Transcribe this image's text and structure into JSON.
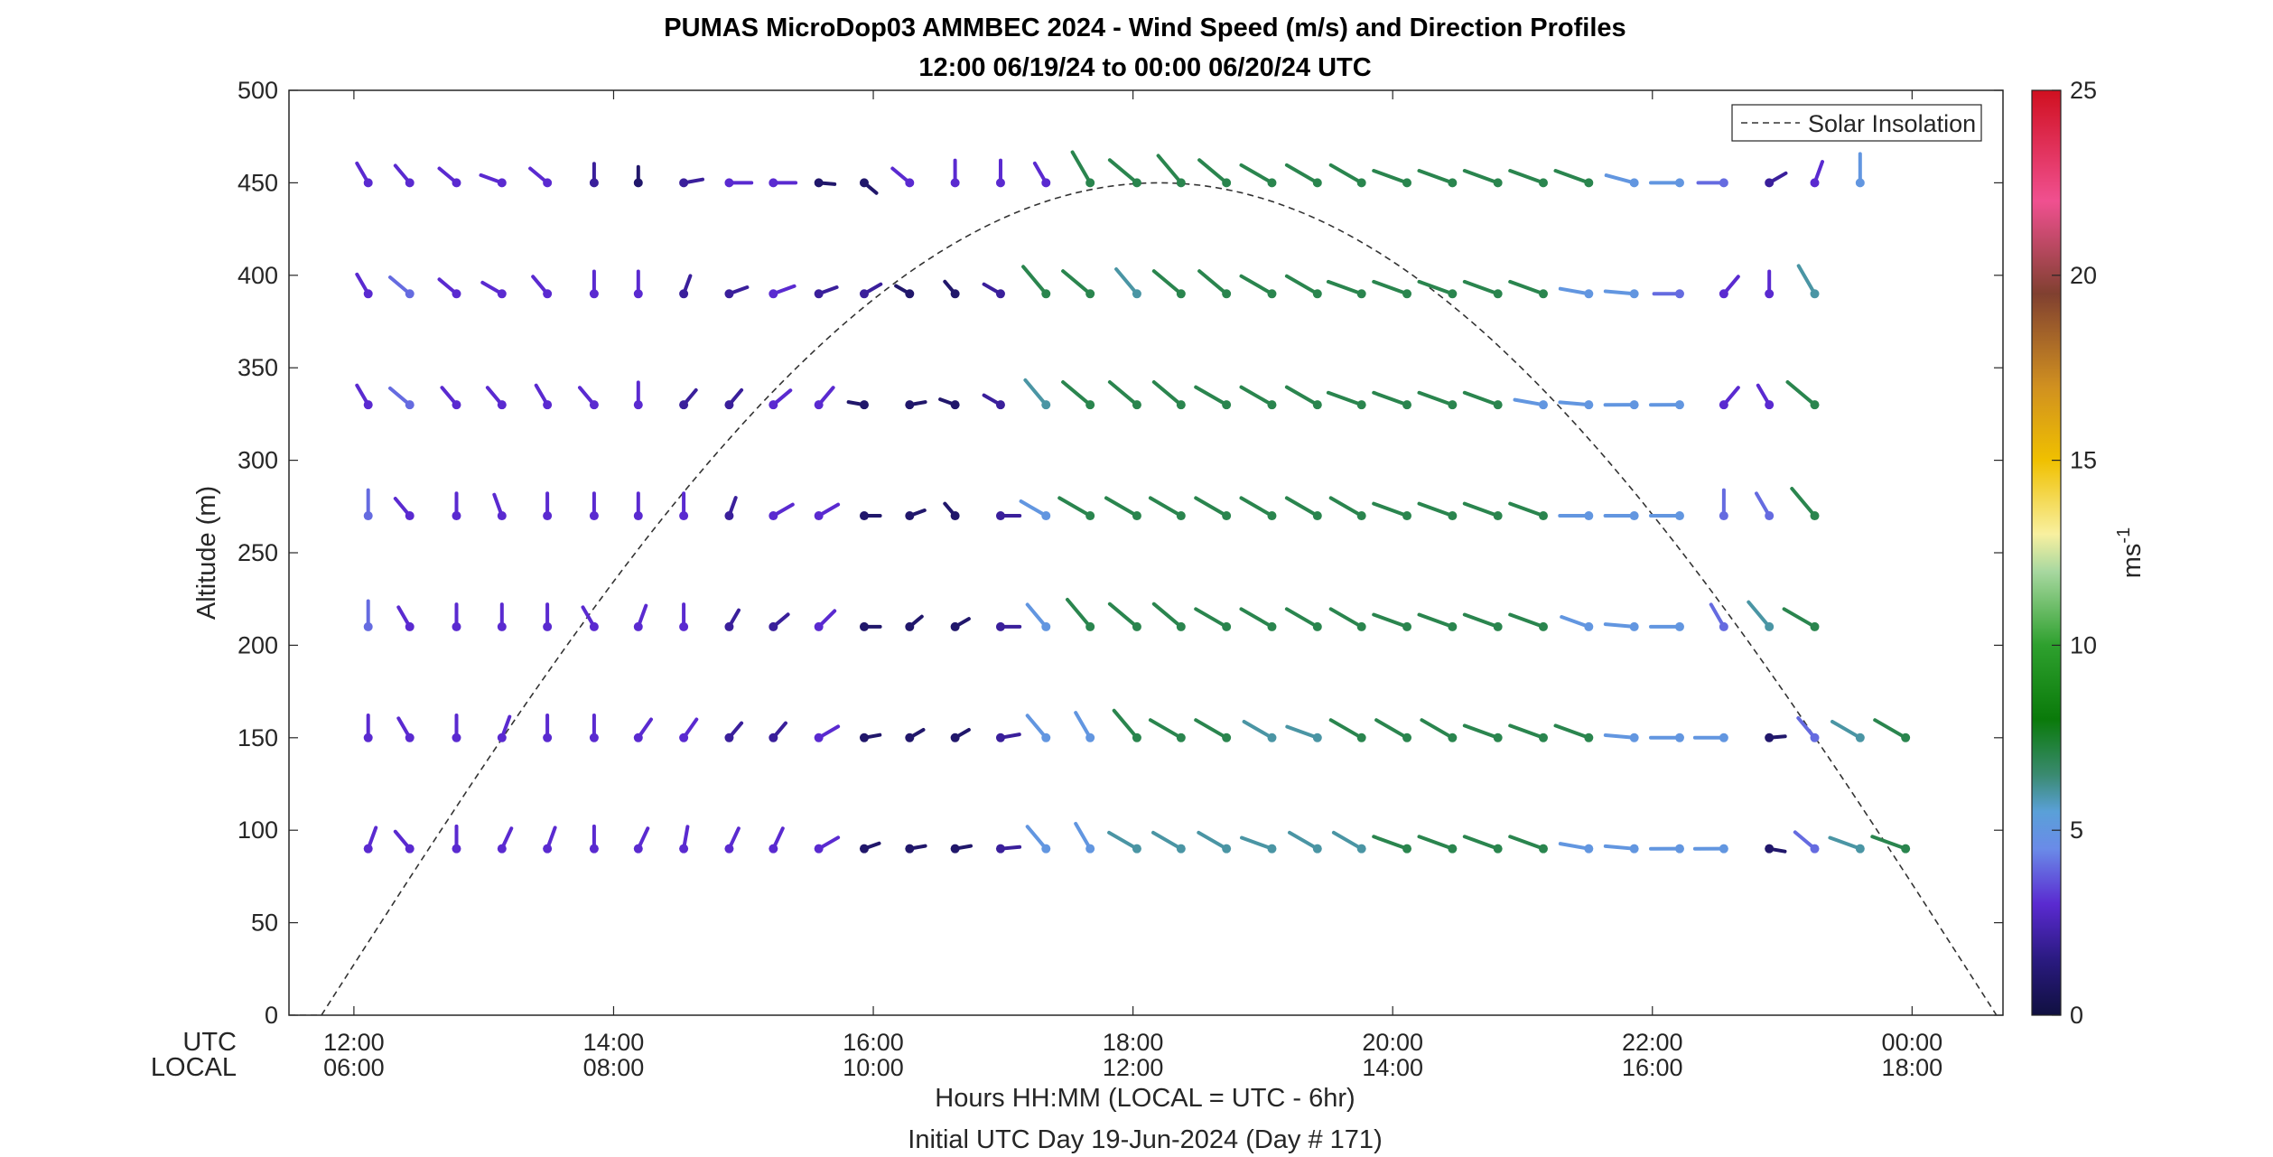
{
  "chart_data": {
    "type": "wind-barb-profile",
    "title": "PUMAS MicroDop03 AMMBEC 2024 - Wind Speed (m/s) and Direction Profiles",
    "subtitle": "12:00 06/19/24 to 00:00 06/20/24  UTC",
    "ylabel": "Altitude (m)",
    "xlabel": "Hours HH:MM  (LOCAL = UTC - 6hr)",
    "footer": "Initial UTC Day 19-Jun-2024 (Day # 171)",
    "row_labels": [
      "UTC",
      "LOCAL"
    ],
    "xlim": [
      11.5,
      24.7
    ],
    "ylim": [
      0,
      500
    ],
    "y_ticks": [
      0,
      50,
      100,
      150,
      200,
      250,
      300,
      350,
      400,
      450,
      500
    ],
    "x_ticks": [
      {
        "x": 12,
        "utc": "12:00",
        "local": "06:00"
      },
      {
        "x": 14,
        "utc": "14:00",
        "local": "08:00"
      },
      {
        "x": 16,
        "utc": "16:00",
        "local": "10:00"
      },
      {
        "x": 18,
        "utc": "18:00",
        "local": "12:00"
      },
      {
        "x": 20,
        "utc": "20:00",
        "local": "14:00"
      },
      {
        "x": 22,
        "utc": "22:00",
        "local": "16:00"
      },
      {
        "x": 24,
        "utc": "00:00",
        "local": "18:00"
      }
    ],
    "colorbar": {
      "label": "ms",
      "label_exponent": "-1",
      "range": [
        0,
        25
      ],
      "ticks": [
        0,
        5,
        10,
        15,
        20,
        25
      ],
      "stops": [
        {
          "v": 0,
          "c": "#101040"
        },
        {
          "v": 1.5,
          "c": "#2a1a80"
        },
        {
          "v": 3,
          "c": "#5a2ad0"
        },
        {
          "v": 4.5,
          "c": "#6a8be8"
        },
        {
          "v": 5.5,
          "c": "#5aa0d8"
        },
        {
          "v": 6.5,
          "c": "#3a8a70"
        },
        {
          "v": 8,
          "c": "#0a7a0a"
        },
        {
          "v": 10,
          "c": "#2ea02e"
        },
        {
          "v": 12,
          "c": "#a8d8a0"
        },
        {
          "v": 13,
          "c": "#f8f0a0"
        },
        {
          "v": 15,
          "c": "#f0c000"
        },
        {
          "v": 17,
          "c": "#d09020"
        },
        {
          "v": 19.5,
          "c": "#804030"
        },
        {
          "v": 22,
          "c": "#f05090"
        },
        {
          "v": 25,
          "c": "#d01020"
        }
      ]
    },
    "legend": {
      "label": "Solar Insolation",
      "location": "top-right"
    },
    "solar_insolation": {
      "rise_hour": 11.75,
      "set_hour": 24.65,
      "peak_altitude": 450
    },
    "altitudes": [
      90,
      150,
      210,
      270,
      330,
      390,
      450
    ],
    "times": [
      12.11,
      12.43,
      12.79,
      13.14,
      13.49,
      13.85,
      14.19,
      14.54,
      14.89,
      15.23,
      15.58,
      15.93,
      16.28,
      16.63,
      16.98,
      17.33,
      17.67,
      18.03,
      18.37,
      18.72,
      19.07,
      19.42,
      19.76,
      20.11,
      20.46,
      20.81,
      21.16,
      21.51,
      21.86,
      22.21,
      22.55,
      22.9,
      23.25,
      23.6,
      23.95,
      24.3
    ],
    "barb_note": "each barb: [speed m/s, direction degrees the line points from the dot]; null = no data",
    "barbs": {
      "90": [
        [
          3,
          20
        ],
        [
          3,
          320
        ],
        [
          3,
          0
        ],
        [
          3,
          25
        ],
        [
          3,
          20
        ],
        [
          3,
          0
        ],
        [
          3,
          25
        ],
        [
          3,
          10
        ],
        [
          3,
          25
        ],
        [
          3,
          25
        ],
        [
          3,
          60
        ],
        [
          1,
          70
        ],
        [
          1,
          80
        ],
        [
          1,
          80
        ],
        [
          2,
          85
        ],
        [
          5,
          320
        ],
        [
          5,
          330
        ],
        [
          6,
          300
        ],
        [
          6,
          300
        ],
        [
          6,
          300
        ],
        [
          6,
          290
        ],
        [
          6,
          300
        ],
        [
          6,
          300
        ],
        [
          7,
          290
        ],
        [
          7,
          290
        ],
        [
          7,
          290
        ],
        [
          7,
          290
        ],
        [
          5,
          280
        ],
        [
          5,
          275
        ],
        [
          5,
          270
        ],
        [
          5,
          270
        ],
        [
          1,
          100
        ],
        [
          4,
          310
        ],
        [
          6,
          290
        ],
        [
          7,
          290
        ],
        [
          null,
          null
        ]
      ],
      "150": [
        [
          3,
          0
        ],
        [
          3,
          330
        ],
        [
          3,
          0
        ],
        [
          3,
          20
        ],
        [
          3,
          0
        ],
        [
          3,
          0
        ],
        [
          3,
          35
        ],
        [
          3,
          35
        ],
        [
          2,
          40
        ],
        [
          2,
          40
        ],
        [
          3,
          60
        ],
        [
          1,
          80
        ],
        [
          1,
          60
        ],
        [
          1,
          60
        ],
        [
          2,
          80
        ],
        [
          5,
          320
        ],
        [
          5,
          330
        ],
        [
          7,
          320
        ],
        [
          7,
          300
        ],
        [
          7,
          300
        ],
        [
          6,
          300
        ],
        [
          6,
          290
        ],
        [
          7,
          300
        ],
        [
          7,
          300
        ],
        [
          7,
          300
        ],
        [
          7,
          290
        ],
        [
          7,
          290
        ],
        [
          7,
          290
        ],
        [
          5,
          275
        ],
        [
          5,
          270
        ],
        [
          5,
          270
        ],
        [
          1,
          85
        ],
        [
          4,
          320
        ],
        [
          6,
          300
        ],
        [
          7,
          300
        ],
        [
          null,
          null
        ]
      ],
      "210": [
        [
          4,
          0
        ],
        [
          3,
          330
        ],
        [
          3,
          0
        ],
        [
          3,
          0
        ],
        [
          3,
          0
        ],
        [
          3,
          330
        ],
        [
          3,
          20
        ],
        [
          3,
          0
        ],
        [
          2,
          30
        ],
        [
          2,
          50
        ],
        [
          3,
          45
        ],
        [
          1,
          90
        ],
        [
          1,
          50
        ],
        [
          1,
          60
        ],
        [
          2,
          90
        ],
        [
          5,
          320
        ],
        [
          7,
          320
        ],
        [
          7,
          310
        ],
        [
          7,
          310
        ],
        [
          7,
          300
        ],
        [
          7,
          300
        ],
        [
          7,
          300
        ],
        [
          7,
          300
        ],
        [
          7,
          290
        ],
        [
          7,
          290
        ],
        [
          7,
          290
        ],
        [
          7,
          290
        ],
        [
          5,
          290
        ],
        [
          5,
          275
        ],
        [
          5,
          270
        ],
        [
          4,
          330
        ],
        [
          6,
          320
        ],
        [
          7,
          300
        ],
        [
          null,
          null
        ],
        [
          null,
          null
        ],
        [
          null,
          null
        ]
      ],
      "270": [
        [
          4,
          0
        ],
        [
          3,
          320
        ],
        [
          3,
          0
        ],
        [
          3,
          340
        ],
        [
          3,
          0
        ],
        [
          3,
          0
        ],
        [
          3,
          0
        ],
        [
          3,
          0
        ],
        [
          2,
          20
        ],
        [
          3,
          60
        ],
        [
          3,
          60
        ],
        [
          1,
          90
        ],
        [
          1,
          70
        ],
        [
          1,
          320
        ],
        [
          2,
          90
        ],
        [
          5,
          300
        ],
        [
          7,
          300
        ],
        [
          7,
          300
        ],
        [
          7,
          300
        ],
        [
          7,
          300
        ],
        [
          7,
          300
        ],
        [
          7,
          300
        ],
        [
          7,
          300
        ],
        [
          7,
          290
        ],
        [
          7,
          290
        ],
        [
          7,
          290
        ],
        [
          7,
          290
        ],
        [
          5,
          270
        ],
        [
          5,
          270
        ],
        [
          5,
          270
        ],
        [
          4,
          0
        ],
        [
          4,
          330
        ],
        [
          7,
          320
        ],
        [
          null,
          null
        ],
        [
          null,
          null
        ],
        [
          null,
          null
        ]
      ],
      "330": [
        [
          3,
          330
        ],
        [
          4,
          310
        ],
        [
          3,
          320
        ],
        [
          3,
          320
        ],
        [
          3,
          330
        ],
        [
          3,
          320
        ],
        [
          3,
          0
        ],
        [
          2,
          40
        ],
        [
          2,
          40
        ],
        [
          3,
          50
        ],
        [
          3,
          40
        ],
        [
          1,
          280
        ],
        [
          1,
          80
        ],
        [
          1,
          290
        ],
        [
          2,
          300
        ],
        [
          6,
          320
        ],
        [
          7,
          310
        ],
        [
          7,
          310
        ],
        [
          7,
          310
        ],
        [
          7,
          300
        ],
        [
          7,
          300
        ],
        [
          7,
          300
        ],
        [
          7,
          290
        ],
        [
          7,
          290
        ],
        [
          7,
          290
        ],
        [
          7,
          290
        ],
        [
          5,
          280
        ],
        [
          5,
          275
        ],
        [
          5,
          270
        ],
        [
          5,
          270
        ],
        [
          3,
          40
        ],
        [
          3,
          330
        ],
        [
          7,
          310
        ],
        [
          null,
          null
        ],
        [
          null,
          null
        ],
        [
          null,
          null
        ]
      ],
      "390": [
        [
          3,
          330
        ],
        [
          4,
          310
        ],
        [
          3,
          310
        ],
        [
          3,
          300
        ],
        [
          3,
          320
        ],
        [
          3,
          0
        ],
        [
          3,
          0
        ],
        [
          2,
          20
        ],
        [
          2,
          70
        ],
        [
          3,
          70
        ],
        [
          2,
          70
        ],
        [
          2,
          60
        ],
        [
          1,
          300
        ],
        [
          1,
          320
        ],
        [
          2,
          300
        ],
        [
          7,
          320
        ],
        [
          7,
          310
        ],
        [
          6,
          320
        ],
        [
          7,
          310
        ],
        [
          7,
          310
        ],
        [
          7,
          300
        ],
        [
          7,
          300
        ],
        [
          7,
          290
        ],
        [
          7,
          290
        ],
        [
          7,
          290
        ],
        [
          7,
          290
        ],
        [
          7,
          290
        ],
        [
          5,
          280
        ],
        [
          5,
          275
        ],
        [
          4,
          270
        ],
        [
          3,
          40
        ],
        [
          3,
          0
        ],
        [
          6,
          330
        ],
        [
          null,
          null
        ],
        [
          null,
          null
        ],
        [
          null,
          null
        ]
      ],
      "450": [
        [
          3,
          330
        ],
        [
          3,
          320
        ],
        [
          3,
          310
        ],
        [
          3,
          290
        ],
        [
          3,
          310
        ],
        [
          2,
          0
        ],
        [
          1,
          0
        ],
        [
          2,
          80
        ],
        [
          3,
          90
        ],
        [
          3,
          90
        ],
        [
          1,
          95
        ],
        [
          1,
          130
        ],
        [
          3,
          310
        ],
        [
          3,
          0
        ],
        [
          3,
          0
        ],
        [
          3,
          330
        ],
        [
          7,
          330
        ],
        [
          7,
          310
        ],
        [
          7,
          320
        ],
        [
          7,
          310
        ],
        [
          7,
          300
        ],
        [
          7,
          300
        ],
        [
          7,
          300
        ],
        [
          7,
          290
        ],
        [
          7,
          290
        ],
        [
          7,
          290
        ],
        [
          7,
          290
        ],
        [
          7,
          290
        ],
        [
          5,
          285
        ],
        [
          5,
          270
        ],
        [
          4,
          270
        ],
        [
          2,
          60
        ],
        [
          3,
          20
        ],
        [
          5,
          0
        ],
        [
          null,
          null
        ],
        [
          null,
          null
        ]
      ]
    }
  }
}
